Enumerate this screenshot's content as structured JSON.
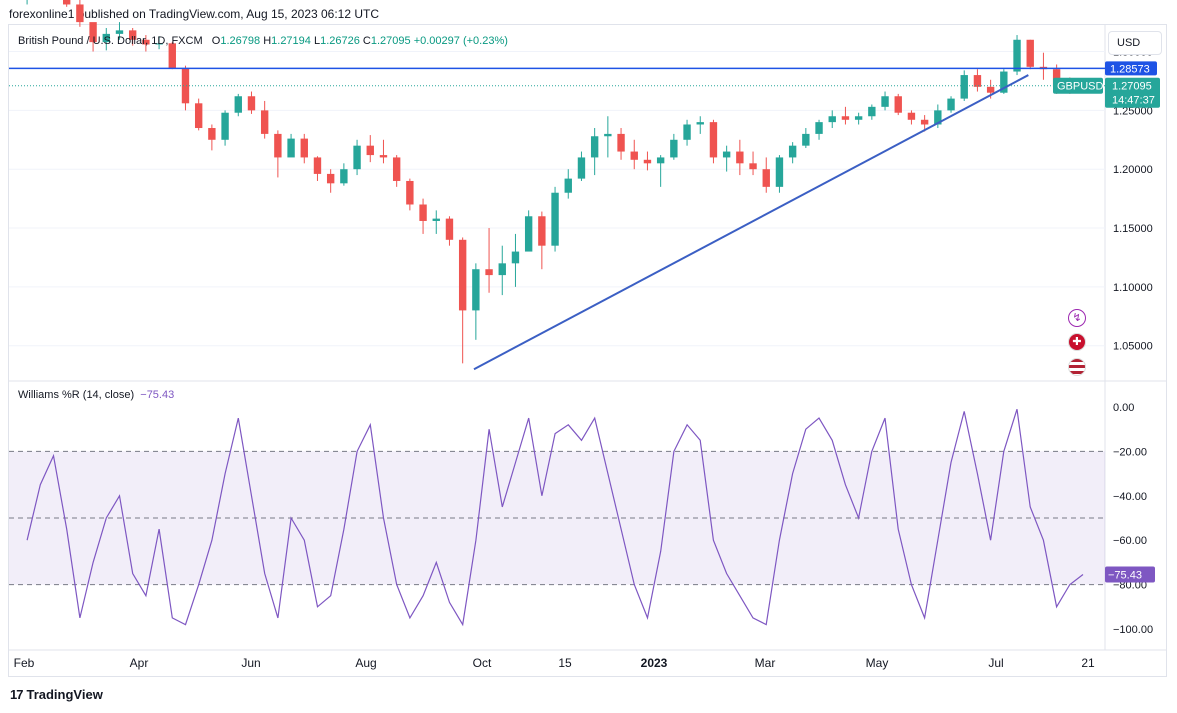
{
  "header": {
    "published": "forexonline1 published on TradingView.com, Aug 15, 2023 06:12 UTC"
  },
  "legend": {
    "symbol": "British Pound / U.S. Dollar, 1D, FXCM",
    "o_label": "O",
    "o": "1.26798",
    "h_label": "H",
    "h": "1.27194",
    "l_label": "L",
    "l": "1.26726",
    "c_label": "C",
    "c": "1.27095",
    "change": "+0.00297 (+0.23%)"
  },
  "currency_button": "USD",
  "price_axis": {
    "ticks": [
      "1.30000",
      "1.25000",
      "1.20000",
      "1.15000",
      "1.10000",
      "1.05000"
    ],
    "line_label": "1.28573",
    "symbol_tag": "GBPUSD",
    "last_price": "1.27095",
    "countdown": "14:47:37"
  },
  "indicator": {
    "name": "Williams %R (14, close)",
    "value": "−75.43",
    "ticks": [
      "0.00",
      "−20.00",
      "−40.00",
      "−60.00",
      "−80.00",
      "−100.00"
    ],
    "value_tag": "−75.43"
  },
  "time_axis": {
    "labels": [
      "Feb",
      "Apr",
      "Jun",
      "Aug",
      "Oct",
      "15",
      "2023",
      "Mar",
      "May",
      "Jul",
      "21"
    ]
  },
  "footer": {
    "brand": "TradingView",
    "logo": "17"
  },
  "colors": {
    "up": "#26a69a",
    "down": "#ef5350",
    "line": "#1e53e5",
    "trend": "#3b5fc4",
    "wr": "#7e57c2",
    "wr_band": "rgba(126,87,194,0.10)",
    "tag_teal": "#26a69a"
  },
  "icons": [
    "lightning-icon",
    "uk-flag-icon",
    "us-flag-icon"
  ],
  "chart_data": [
    {
      "type": "candlestick",
      "title": "British Pound / U.S. Dollar, 1D, FXCM",
      "ylim": [
        1.02,
        1.32
      ],
      "horizontal_line": 1.28573,
      "last_price": 1.27095,
      "trendline": {
        "from": [
          "2022-09-26",
          1.03
        ],
        "to": [
          "2023-07-17",
          1.28
        ]
      },
      "series": [
        {
          "values": [
            [
              "2022-02-01",
              1.344,
              1.352,
              1.34,
              1.348
            ],
            [
              "2022-02-08",
              1.348,
              1.36,
              1.345,
              1.356
            ],
            [
              "2022-02-15",
              1.356,
              1.363,
              1.35,
              1.36
            ],
            [
              "2022-02-22",
              1.36,
              1.362,
              1.338,
              1.34
            ],
            [
              "2022-03-01",
              1.34,
              1.344,
              1.321,
              1.325
            ],
            [
              "2022-03-08",
              1.325,
              1.316,
              1.3,
              1.308
            ],
            [
              "2022-03-15",
              1.308,
              1.32,
              1.301,
              1.315
            ],
            [
              "2022-03-22",
              1.315,
              1.325,
              1.31,
              1.318
            ],
            [
              "2022-03-29",
              1.318,
              1.32,
              1.305,
              1.31
            ],
            [
              "2022-04-05",
              1.31,
              1.314,
              1.3,
              1.306
            ],
            [
              "2022-04-12",
              1.306,
              1.313,
              1.302,
              1.307
            ],
            [
              "2022-04-19",
              1.307,
              1.308,
              1.285,
              1.286
            ],
            [
              "2022-04-26",
              1.286,
              1.288,
              1.25,
              1.256
            ],
            [
              "2022-05-03",
              1.256,
              1.26,
              1.233,
              1.235
            ],
            [
              "2022-05-10",
              1.235,
              1.238,
              1.216,
              1.225
            ],
            [
              "2022-05-17",
              1.225,
              1.25,
              1.22,
              1.248
            ],
            [
              "2022-05-24",
              1.248,
              1.264,
              1.245,
              1.262
            ],
            [
              "2022-05-31",
              1.262,
              1.266,
              1.247,
              1.25
            ],
            [
              "2022-06-07",
              1.25,
              1.258,
              1.226,
              1.23
            ],
            [
              "2022-06-14",
              1.23,
              1.233,
              1.193,
              1.21
            ],
            [
              "2022-06-21",
              1.21,
              1.23,
              1.215,
              1.226
            ],
            [
              "2022-06-28",
              1.226,
              1.23,
              1.205,
              1.21
            ],
            [
              "2022-07-05",
              1.21,
              1.211,
              1.19,
              1.196
            ],
            [
              "2022-07-12",
              1.196,
              1.2,
              1.18,
              1.188
            ],
            [
              "2022-07-19",
              1.188,
              1.205,
              1.186,
              1.2
            ],
            [
              "2022-07-26",
              1.2,
              1.225,
              1.195,
              1.22
            ],
            [
              "2022-08-02",
              1.22,
              1.229,
              1.206,
              1.212
            ],
            [
              "2022-08-09",
              1.212,
              1.225,
              1.205,
              1.21
            ],
            [
              "2022-08-16",
              1.21,
              1.212,
              1.185,
              1.19
            ],
            [
              "2022-08-23",
              1.19,
              1.192,
              1.165,
              1.17
            ],
            [
              "2022-08-30",
              1.17,
              1.175,
              1.145,
              1.156
            ],
            [
              "2022-09-06",
              1.156,
              1.165,
              1.145,
              1.158
            ],
            [
              "2022-09-13",
              1.158,
              1.16,
              1.135,
              1.14
            ],
            [
              "2022-09-20",
              1.14,
              1.142,
              1.035,
              1.08
            ],
            [
              "2022-09-27",
              1.08,
              1.12,
              1.055,
              1.115
            ],
            [
              "2022-10-04",
              1.115,
              1.15,
              1.095,
              1.11
            ],
            [
              "2022-10-11",
              1.11,
              1.135,
              1.093,
              1.12
            ],
            [
              "2022-10-18",
              1.12,
              1.145,
              1.1,
              1.13
            ],
            [
              "2022-10-25",
              1.13,
              1.165,
              1.14,
              1.16
            ],
            [
              "2022-11-01",
              1.16,
              1.164,
              1.115,
              1.135
            ],
            [
              "2022-11-08",
              1.135,
              1.185,
              1.13,
              1.18
            ],
            [
              "2022-11-15",
              1.18,
              1.2,
              1.175,
              1.192
            ],
            [
              "2022-11-22",
              1.192,
              1.215,
              1.19,
              1.21
            ],
            [
              "2022-11-29",
              1.21,
              1.235,
              1.195,
              1.228
            ],
            [
              "2022-12-06",
              1.228,
              1.245,
              1.21,
              1.23
            ],
            [
              "2022-12-13",
              1.23,
              1.235,
              1.208,
              1.215
            ],
            [
              "2022-12-20",
              1.215,
              1.225,
              1.2,
              1.208
            ],
            [
              "2022-12-27",
              1.208,
              1.215,
              1.199,
              1.205
            ],
            [
              "2023-01-03",
              1.205,
              1.212,
              1.185,
              1.21
            ],
            [
              "2023-01-10",
              1.21,
              1.23,
              1.208,
              1.225
            ],
            [
              "2023-01-17",
              1.225,
              1.242,
              1.22,
              1.238
            ],
            [
              "2023-01-24",
              1.238,
              1.245,
              1.23,
              1.24
            ],
            [
              "2023-01-31",
              1.24,
              1.242,
              1.205,
              1.21
            ],
            [
              "2023-02-07",
              1.21,
              1.22,
              1.198,
              1.215
            ],
            [
              "2023-02-14",
              1.215,
              1.225,
              1.195,
              1.205
            ],
            [
              "2023-02-21",
              1.205,
              1.215,
              1.195,
              1.2
            ],
            [
              "2023-02-28",
              1.2,
              1.21,
              1.18,
              1.185
            ],
            [
              "2023-03-07",
              1.185,
              1.212,
              1.18,
              1.21
            ],
            [
              "2023-03-14",
              1.21,
              1.223,
              1.205,
              1.22
            ],
            [
              "2023-03-21",
              1.22,
              1.235,
              1.218,
              1.23
            ],
            [
              "2023-03-28",
              1.23,
              1.242,
              1.225,
              1.24
            ],
            [
              "2023-04-04",
              1.24,
              1.25,
              1.235,
              1.245
            ],
            [
              "2023-04-11",
              1.245,
              1.253,
              1.238,
              1.242
            ],
            [
              "2023-04-18",
              1.242,
              1.248,
              1.238,
              1.245
            ],
            [
              "2023-04-25",
              1.245,
              1.255,
              1.242,
              1.253
            ],
            [
              "2023-05-02",
              1.253,
              1.266,
              1.25,
              1.262
            ],
            [
              "2023-05-09",
              1.262,
              1.264,
              1.246,
              1.248
            ],
            [
              "2023-05-16",
              1.248,
              1.25,
              1.238,
              1.242
            ],
            [
              "2023-05-23",
              1.242,
              1.246,
              1.232,
              1.238
            ],
            [
              "2023-05-30",
              1.238,
              1.255,
              1.235,
              1.25
            ],
            [
              "2023-06-06",
              1.25,
              1.262,
              1.248,
              1.26
            ],
            [
              "2023-06-13",
              1.26,
              1.284,
              1.258,
              1.28
            ],
            [
              "2023-06-20",
              1.28,
              1.285,
              1.266,
              1.27
            ],
            [
              "2023-06-27",
              1.27,
              1.276,
              1.26,
              1.265
            ],
            [
              "2023-07-04",
              1.265,
              1.285,
              1.264,
              1.283
            ],
            [
              "2023-07-11",
              1.283,
              1.314,
              1.28,
              1.31
            ],
            [
              "2023-07-18",
              1.31,
              1.31,
              1.285,
              1.287
            ],
            [
              "2023-07-25",
              1.287,
              1.299,
              1.276,
              1.285
            ],
            [
              "2023-08-01",
              1.285,
              1.289,
              1.264,
              1.27
            ],
            [
              "2023-08-08",
              1.27,
              1.278,
              1.264,
              1.268
            ],
            [
              "2023-08-15",
              1.268,
              1.2719,
              1.2673,
              1.271
            ]
          ]
        }
      ]
    },
    {
      "type": "line",
      "title": "Williams %R (14, close)",
      "ylim": [
        -100,
        0
      ],
      "bands": [
        -20,
        -50,
        -80
      ],
      "last_value": -75.43,
      "series": [
        {
          "values": [
            [
              "2022-02-01",
              -60
            ],
            [
              "2022-02-08",
              -35
            ],
            [
              "2022-02-15",
              -22
            ],
            [
              "2022-02-22",
              -55
            ],
            [
              "2022-03-01",
              -95
            ],
            [
              "2022-03-08",
              -70
            ],
            [
              "2022-03-15",
              -50
            ],
            [
              "2022-03-22",
              -40
            ],
            [
              "2022-03-29",
              -75
            ],
            [
              "2022-04-05",
              -85
            ],
            [
              "2022-04-12",
              -55
            ],
            [
              "2022-04-19",
              -95
            ],
            [
              "2022-04-26",
              -98
            ],
            [
              "2022-05-03",
              -80
            ],
            [
              "2022-05-10",
              -60
            ],
            [
              "2022-05-17",
              -30
            ],
            [
              "2022-05-24",
              -5
            ],
            [
              "2022-05-31",
              -40
            ],
            [
              "2022-06-07",
              -75
            ],
            [
              "2022-06-14",
              -95
            ],
            [
              "2022-06-21",
              -50
            ],
            [
              "2022-06-28",
              -60
            ],
            [
              "2022-07-05",
              -90
            ],
            [
              "2022-07-12",
              -85
            ],
            [
              "2022-07-19",
              -55
            ],
            [
              "2022-07-26",
              -20
            ],
            [
              "2022-08-02",
              -8
            ],
            [
              "2022-08-09",
              -50
            ],
            [
              "2022-08-16",
              -80
            ],
            [
              "2022-08-23",
              -95
            ],
            [
              "2022-08-30",
              -85
            ],
            [
              "2022-09-06",
              -70
            ],
            [
              "2022-09-13",
              -88
            ],
            [
              "2022-09-20",
              -98
            ],
            [
              "2022-09-27",
              -60
            ],
            [
              "2022-10-04",
              -10
            ],
            [
              "2022-10-11",
              -45
            ],
            [
              "2022-10-18",
              -25
            ],
            [
              "2022-10-25",
              -5
            ],
            [
              "2022-11-01",
              -40
            ],
            [
              "2022-11-08",
              -12
            ],
            [
              "2022-11-15",
              -8
            ],
            [
              "2022-11-22",
              -15
            ],
            [
              "2022-11-29",
              -5
            ],
            [
              "2022-12-06",
              -30
            ],
            [
              "2022-12-13",
              -55
            ],
            [
              "2022-12-20",
              -80
            ],
            [
              "2022-12-27",
              -95
            ],
            [
              "2023-01-03",
              -65
            ],
            [
              "2023-01-10",
              -20
            ],
            [
              "2023-01-17",
              -8
            ],
            [
              "2023-01-24",
              -15
            ],
            [
              "2023-01-31",
              -60
            ],
            [
              "2023-02-07",
              -75
            ],
            [
              "2023-02-14",
              -85
            ],
            [
              "2023-02-21",
              -95
            ],
            [
              "2023-02-28",
              -98
            ],
            [
              "2023-03-07",
              -60
            ],
            [
              "2023-03-14",
              -30
            ],
            [
              "2023-03-21",
              -10
            ],
            [
              "2023-03-28",
              -5
            ],
            [
              "2023-04-04",
              -15
            ],
            [
              "2023-04-11",
              -35
            ],
            [
              "2023-04-18",
              -50
            ],
            [
              "2023-04-25",
              -20
            ],
            [
              "2023-05-02",
              -5
            ],
            [
              "2023-05-09",
              -55
            ],
            [
              "2023-05-16",
              -80
            ],
            [
              "2023-05-23",
              -95
            ],
            [
              "2023-05-30",
              -60
            ],
            [
              "2023-06-06",
              -25
            ],
            [
              "2023-06-13",
              -2
            ],
            [
              "2023-06-20",
              -30
            ],
            [
              "2023-06-27",
              -60
            ],
            [
              "2023-07-04",
              -20
            ],
            [
              "2023-07-11",
              -1
            ],
            [
              "2023-07-18",
              -45
            ],
            [
              "2023-07-25",
              -60
            ],
            [
              "2023-08-01",
              -90
            ],
            [
              "2023-08-08",
              -80
            ],
            [
              "2023-08-15",
              -75.43
            ]
          ]
        }
      ]
    }
  ]
}
